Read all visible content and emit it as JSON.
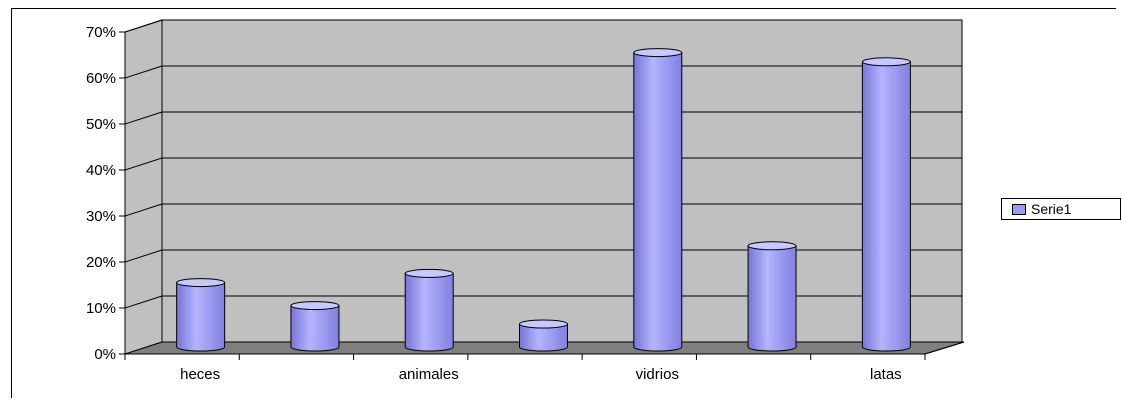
{
  "chart_data": {
    "type": "bar",
    "categories": [
      "heces",
      "",
      "animales",
      "",
      "vidrios",
      "",
      "latas"
    ],
    "series": [
      {
        "name": "Serie1",
        "values": [
          0.14,
          0.09,
          0.16,
          0.05,
          0.64,
          0.22,
          0.62
        ]
      }
    ],
    "y_ticks": [
      "0%",
      "10%",
      "20%",
      "30%",
      "40%",
      "50%",
      "60%",
      "70%"
    ],
    "ylim": [
      0,
      0.7
    ],
    "grid": true,
    "legend_position": "right",
    "colors": {
      "bar": "#9a9af2",
      "bar_dark": "#6e6ed0",
      "bar_light": "#c8c8ff",
      "back_wall": "#c0c0c0",
      "floor": "#7f7f7f",
      "gridline": "#000000"
    }
  },
  "legend": {
    "label": "Serie1"
  }
}
